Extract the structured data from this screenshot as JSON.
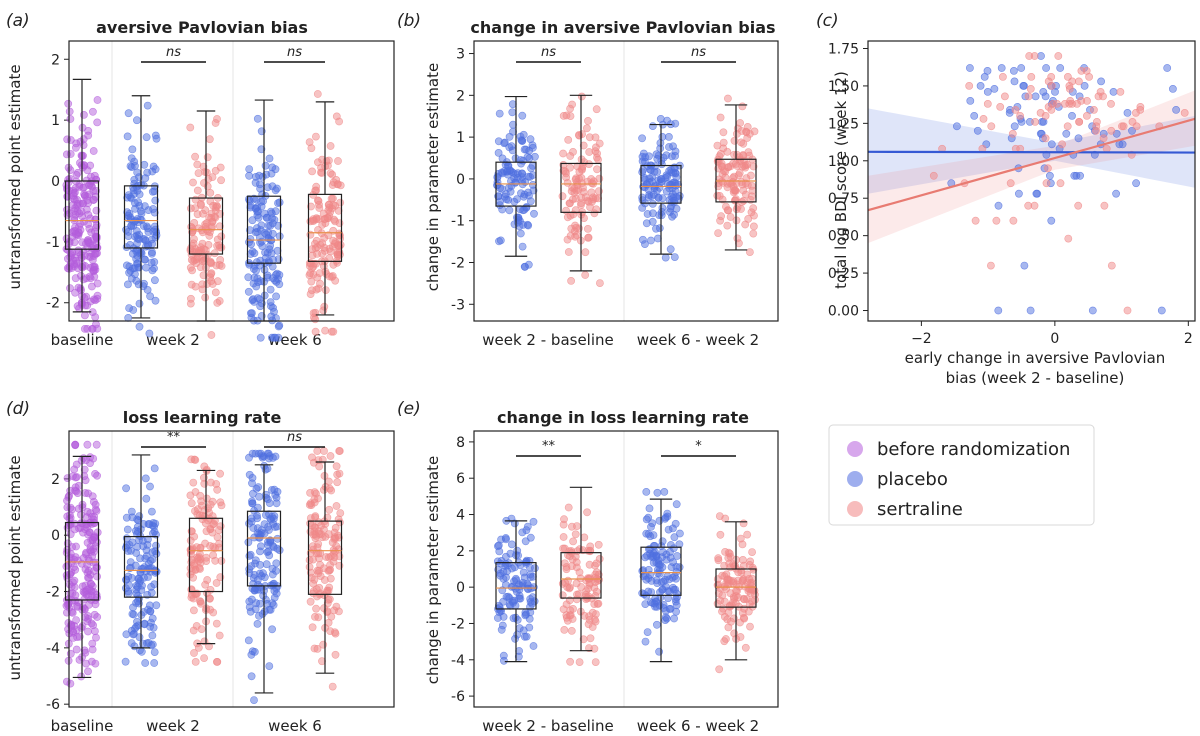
{
  "colors": {
    "baseline": "#b45ddb",
    "placebo": "#4f6fe0",
    "sertraline": "#f08888",
    "median": "#e8904a",
    "box": "#222222",
    "regression_placebo": "#3559d4",
    "regression_sertraline": "#e87b72"
  },
  "legend": {
    "items": [
      {
        "label": "before randomization",
        "color": "#c98ae6"
      },
      {
        "label": "placebo",
        "color": "#7d93e8"
      },
      {
        "label": "sertraline",
        "color": "#f4a6a6"
      }
    ]
  },
  "panels": [
    {
      "id": "a",
      "label": "(a)",
      "title": "aversive Pavlovian bias",
      "ylabel": "untransformed point estimate",
      "groups": [
        "baseline",
        "week 2",
        "week 6"
      ],
      "ylim": [
        -2.3,
        2.3
      ],
      "yticks": [
        "-2",
        "-1",
        "0",
        "1",
        "2"
      ],
      "ytick_values": [
        -2,
        -1,
        0,
        1,
        2
      ],
      "significance": [
        {
          "text": "ns",
          "italic": true,
          "from": 1,
          "to": 2
        },
        {
          "text": "ns",
          "italic": true,
          "from": 3,
          "to": 4
        }
      ]
    },
    {
      "id": "b",
      "label": "(b)",
      "title": "change in aversive Pavlovian bias",
      "ylabel": "change in parameter estimate",
      "groups": [
        "week 2 - baseline",
        "week 6 - week 2"
      ],
      "ylim": [
        -3.4,
        3.3
      ],
      "yticks": [
        "-3",
        "-2",
        "-1",
        "0",
        "1",
        "2",
        "3"
      ],
      "ytick_values": [
        -3,
        -2,
        -1,
        0,
        1,
        2,
        3
      ],
      "significance": [
        {
          "text": "ns",
          "italic": true,
          "from": 0,
          "to": 1
        },
        {
          "text": "ns",
          "italic": true,
          "from": 2,
          "to": 3
        }
      ]
    },
    {
      "id": "c",
      "label": "(c)",
      "ylabel": "total log BDI score (week 12)",
      "xlabel_lines": [
        "early change in aversive Pavlovian",
        "bias (week 2 - baseline)"
      ],
      "xlim": [
        -2.8,
        2.1
      ],
      "ylim": [
        -0.07,
        1.8
      ],
      "xticks": [
        "−2",
        "0",
        "2"
      ],
      "xtick_values": [
        -2,
        0,
        2
      ],
      "yticks": [
        "0.00",
        "0.25",
        "0.50",
        "0.75",
        "1.00",
        "1.25",
        "1.50",
        "1.75"
      ],
      "ytick_values": [
        0,
        0.25,
        0.5,
        0.75,
        1.0,
        1.25,
        1.5,
        1.75
      ]
    },
    {
      "id": "d",
      "label": "(d)",
      "title": "loss learning rate",
      "ylabel": "untransformed point estimate",
      "groups": [
        "baseline",
        "week 2",
        "week 6"
      ],
      "ylim": [
        -6.1,
        3.7
      ],
      "yticks": [
        "-6",
        "-4",
        "-2",
        "0",
        "2"
      ],
      "ytick_values": [
        -6,
        -4,
        -2,
        0,
        2
      ],
      "significance": [
        {
          "text": "**",
          "italic": false,
          "from": 1,
          "to": 2
        },
        {
          "text": "ns",
          "italic": true,
          "from": 3,
          "to": 4
        }
      ]
    },
    {
      "id": "e",
      "label": "(e)",
      "title": "change in loss learning rate",
      "ylabel": "change in parameter estimate",
      "groups": [
        "week 2 - baseline",
        "week 6 - week 2"
      ],
      "ylim": [
        -6.6,
        8.6
      ],
      "yticks": [
        "-6",
        "-4",
        "-2",
        "0",
        "2",
        "4",
        "6",
        "8"
      ],
      "ytick_values": [
        -6,
        -4,
        -2,
        0,
        2,
        4,
        6,
        8
      ],
      "significance": [
        {
          "text": "**",
          "italic": false,
          "from": 0,
          "to": 1
        },
        {
          "text": "*",
          "italic": false,
          "from": 2,
          "to": 3
        }
      ]
    }
  ],
  "chart_data": [
    {
      "type": "box",
      "panel": "a",
      "boxes": [
        {
          "group": "baseline",
          "condition": "before randomization",
          "q1": -1.12,
          "median": -0.65,
          "q3": 0.0,
          "whisker_low": -2.15,
          "whisker_high": 1.67
        },
        {
          "group": "week 2",
          "condition": "placebo",
          "q1": -1.1,
          "median": -0.65,
          "q3": -0.08,
          "whisker_low": -2.25,
          "whisker_high": 1.4
        },
        {
          "group": "week 2",
          "condition": "sertraline",
          "q1": -1.2,
          "median": -0.8,
          "q3": -0.28,
          "whisker_low": -2.3,
          "whisker_high": 1.15
        },
        {
          "group": "week 6",
          "condition": "placebo",
          "q1": -1.35,
          "median": -0.97,
          "q3": -0.25,
          "whisker_low": -2.3,
          "whisker_high": 1.33
        },
        {
          "group": "week 6",
          "condition": "sertraline",
          "q1": -1.32,
          "median": -0.85,
          "q3": -0.22,
          "whisker_low": -2.2,
          "whisker_high": 1.3
        }
      ]
    },
    {
      "type": "box",
      "panel": "b",
      "boxes": [
        {
          "group": "week 2 - baseline",
          "condition": "placebo",
          "q1": -0.65,
          "median": -0.12,
          "q3": 0.4,
          "whisker_low": -1.85,
          "whisker_high": 1.97
        },
        {
          "group": "week 2 - baseline",
          "condition": "sertraline",
          "q1": -0.8,
          "median": -0.12,
          "q3": 0.37,
          "whisker_low": -2.2,
          "whisker_high": 2.0
        },
        {
          "group": "week 6 - week 2",
          "condition": "placebo",
          "q1": -0.58,
          "median": -0.18,
          "q3": 0.32,
          "whisker_low": -1.8,
          "whisker_high": 1.3
        },
        {
          "group": "week 6 - week 2",
          "condition": "sertraline",
          "q1": -0.55,
          "median": -0.05,
          "q3": 0.47,
          "whisker_low": -1.7,
          "whisker_high": 1.77
        }
      ]
    },
    {
      "type": "scatter",
      "panel": "c",
      "series": [
        {
          "condition": "placebo",
          "regression": {
            "x": [
              -2.8,
              2.1
            ],
            "y": [
              1.06,
              1.055
            ]
          },
          "ci_band": {
            "x": [
              -2.8,
              0,
              2.1
            ],
            "lower": [
              0.78,
              1.0,
              0.82
            ],
            "upper": [
              1.35,
              1.12,
              1.3
            ]
          }
        },
        {
          "condition": "sertraline",
          "regression": {
            "x": [
              -2.8,
              2.1
            ],
            "y": [
              0.67,
              1.28
            ]
          },
          "ci_band": {
            "x": [
              -2.8,
              0,
              2.1
            ],
            "lower": [
              0.45,
              0.94,
              1.1
            ],
            "upper": [
              0.9,
              1.1,
              1.47
            ]
          }
        }
      ]
    },
    {
      "type": "box",
      "panel": "d",
      "boxes": [
        {
          "group": "baseline",
          "condition": "before randomization",
          "q1": -2.3,
          "median": -0.95,
          "q3": 0.45,
          "whisker_low": -5.05,
          "whisker_high": 2.8
        },
        {
          "group": "week 2",
          "condition": "placebo",
          "q1": -2.2,
          "median": -1.25,
          "q3": -0.05,
          "whisker_low": -4.0,
          "whisker_high": 2.85
        },
        {
          "group": "week 2",
          "condition": "sertraline",
          "q1": -2.0,
          "median": -0.55,
          "q3": 0.6,
          "whisker_low": -3.85,
          "whisker_high": 2.3
        },
        {
          "group": "week 6",
          "condition": "placebo",
          "q1": -1.8,
          "median": -0.1,
          "q3": 0.85,
          "whisker_low": -5.6,
          "whisker_high": 2.5
        },
        {
          "group": "week 6",
          "condition": "sertraline",
          "q1": -2.1,
          "median": -0.55,
          "q3": 0.5,
          "whisker_low": -4.9,
          "whisker_high": 2.6
        }
      ]
    },
    {
      "type": "box",
      "panel": "e",
      "boxes": [
        {
          "group": "week 2 - baseline",
          "condition": "placebo",
          "q1": -1.2,
          "median": -0.05,
          "q3": 1.35,
          "whisker_low": -4.1,
          "whisker_high": 3.65
        },
        {
          "group": "week 2 - baseline",
          "condition": "sertraline",
          "q1": -0.6,
          "median": 0.45,
          "q3": 1.9,
          "whisker_low": -3.5,
          "whisker_high": 5.5
        },
        {
          "group": "week 6 - week 2",
          "condition": "placebo",
          "q1": -0.45,
          "median": 0.8,
          "q3": 2.2,
          "whisker_low": -4.1,
          "whisker_high": 4.85
        },
        {
          "group": "week 6 - week 2",
          "condition": "sertraline",
          "q1": -1.1,
          "median": 0.0,
          "q3": 1.0,
          "whisker_low": -4.0,
          "whisker_high": 3.6
        }
      ]
    }
  ]
}
